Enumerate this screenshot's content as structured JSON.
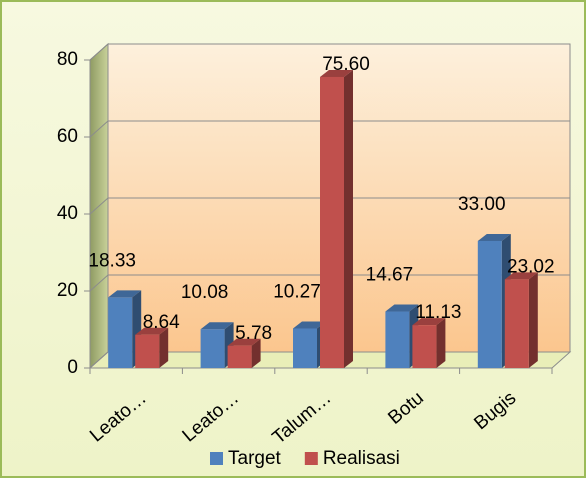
{
  "chart_data": {
    "type": "bar3d",
    "categories": [
      "Leato…",
      "Leato…",
      "Talum…",
      "Botu",
      "Bugis"
    ],
    "series": [
      {
        "name": "Target",
        "color": "#4f81bd",
        "values": [
          18.33,
          10.08,
          10.27,
          14.67,
          33
        ],
        "value_labels": [
          "18.33",
          "10.08",
          "10.27",
          "14.67",
          "33.00"
        ]
      },
      {
        "name": "Realisasi",
        "color": "#c0504d",
        "values": [
          8.64,
          5.78,
          75.6,
          11.13,
          23.02
        ],
        "value_labels": [
          "8.64",
          "5.78",
          "75.60",
          "11.13",
          "23.02"
        ]
      }
    ],
    "ylim": [
      0,
      80
    ],
    "yticks": [
      0,
      20,
      40,
      60,
      80
    ],
    "grid": true,
    "legend": "bottom"
  }
}
